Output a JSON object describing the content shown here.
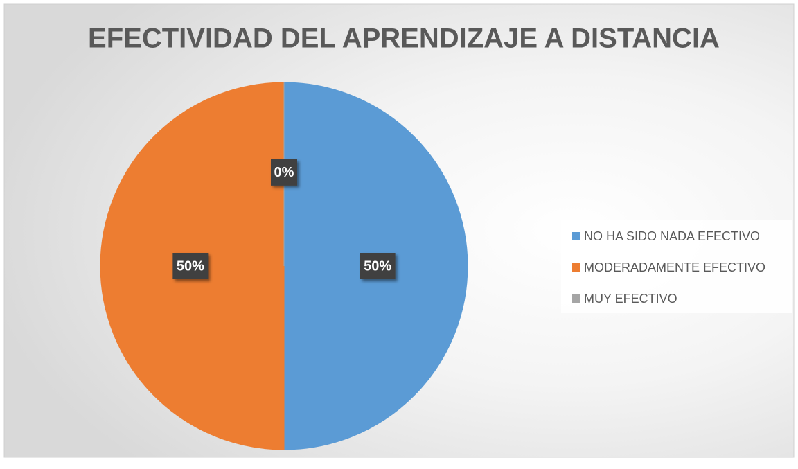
{
  "chart_data": {
    "type": "pie",
    "title": "EFECTIVIDAD DEL APRENDIZAJE A DISTANCIA",
    "categories": [
      "NO HA SIDO NADA EFECTIVO",
      "MODERADAMENTE EFECTIVO",
      "MUY EFECTIVO"
    ],
    "values": [
      50,
      50,
      0
    ],
    "value_labels": [
      "50%",
      "50%",
      "0%"
    ],
    "colors": [
      "#5b9bd5",
      "#ed7d31",
      "#a5a5a5"
    ],
    "legend": "right"
  }
}
